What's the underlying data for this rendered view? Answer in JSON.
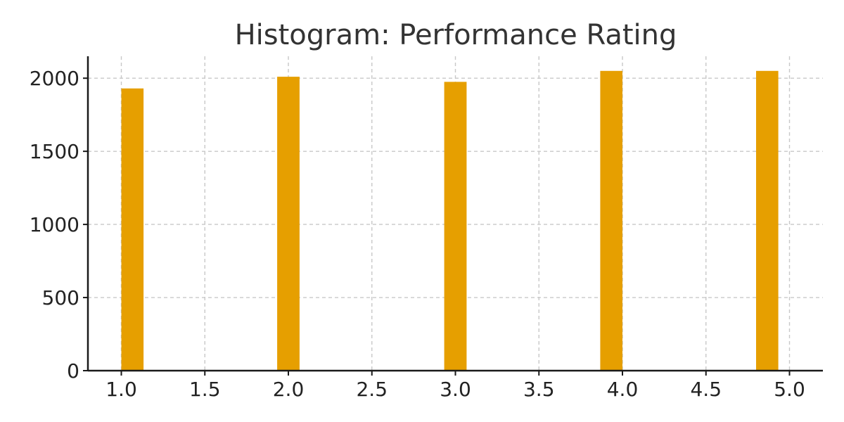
{
  "chart_data": {
    "type": "bar",
    "title": "Histogram: Performance Rating",
    "xlabel": "",
    "ylabel": "",
    "bin_edges": [
      1.0,
      1.133,
      1.933,
      2.067,
      2.933,
      3.067,
      3.867,
      4.0,
      4.8,
      4.933
    ],
    "bins": [
      {
        "x_start": 1.0,
        "x_end": 1.133,
        "count": 1930
      },
      {
        "x_start": 1.933,
        "x_end": 2.067,
        "count": 2010
      },
      {
        "x_start": 2.933,
        "x_end": 3.067,
        "count": 1975
      },
      {
        "x_start": 3.867,
        "x_end": 4.0,
        "count": 2050
      },
      {
        "x_start": 4.8,
        "x_end": 4.933,
        "count": 2050
      }
    ],
    "xlim": [
      0.8,
      5.2
    ],
    "ylim": [
      0,
      2150
    ],
    "xticks": [
      "1.0",
      "1.5",
      "2.0",
      "2.5",
      "3.0",
      "3.5",
      "4.0",
      "4.5",
      "5.0"
    ],
    "xtick_values": [
      1.0,
      1.5,
      2.0,
      2.5,
      3.0,
      3.5,
      4.0,
      4.5,
      5.0
    ],
    "yticks": [
      "0",
      "500",
      "1000",
      "1500",
      "2000"
    ],
    "ytick_values": [
      0,
      500,
      1000,
      1500,
      2000
    ],
    "grid": true,
    "legend": "none",
    "colors": {
      "bar": "#E69F00",
      "grid": "#c8c8c8",
      "axis": "#1a1a1a"
    }
  }
}
